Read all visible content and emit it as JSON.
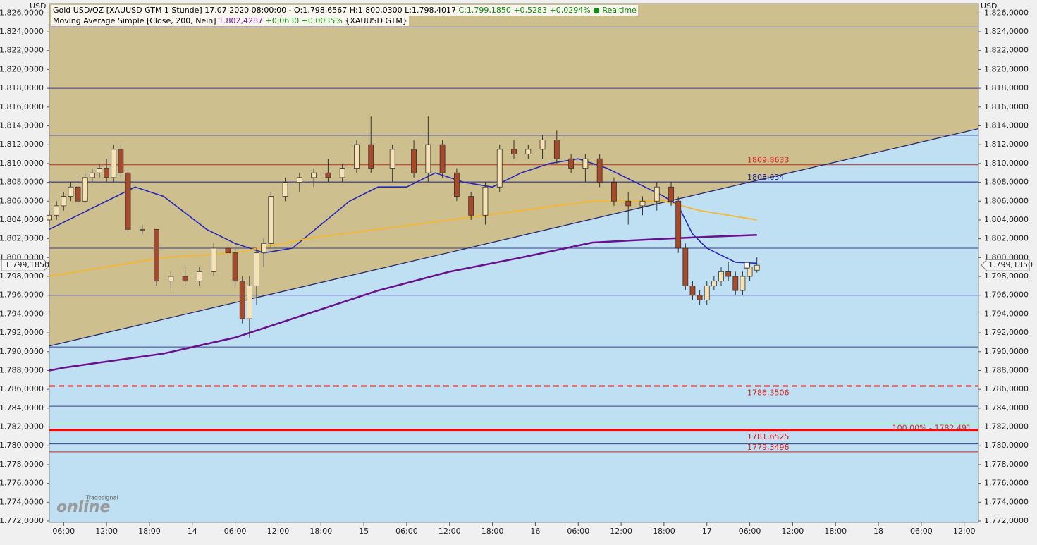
{
  "chart_data": {
    "type": "candlestick",
    "unit": "USD",
    "header": "Gold USD/OZ [XAUUSD GTM 1 Stunde] 17.07.2020 08:00:00 - O:1.798,6567 H:1.800,0300 L:1.798,4017",
    "close_text": "C:1.799,1850 +0,5283 +0,0294%",
    "realtime": "Realtime",
    "indicator": "Moving Average Simple [Close, 200, Nein]",
    "indicator_value": "1.802,4287",
    "indicator_change": "+0,0630 +0,0035%",
    "indicator_symbol": "{XAUUSD GTM}",
    "close": {
      "value": 1799.185,
      "label": "1.799,1850"
    },
    "logo_small": "Tradesignal",
    "logo": "online",
    "xlim": [
      4,
      134
    ],
    "ylim": [
      1771.85,
      1827
    ],
    "yticks": [
      {
        "value": 1772,
        "label": "1.772,0000"
      },
      {
        "value": 1774,
        "label": "1.774,0000"
      },
      {
        "value": 1776,
        "label": "1.776,0000"
      },
      {
        "value": 1778,
        "label": "1.778,0000"
      },
      {
        "value": 1780,
        "label": "1.780,0000"
      },
      {
        "value": 1782,
        "label": "1.782,0000"
      },
      {
        "value": 1784,
        "label": "1.784,0000"
      },
      {
        "value": 1786,
        "label": "1.786,0000"
      },
      {
        "value": 1788,
        "label": "1.788,0000"
      },
      {
        "value": 1790,
        "label": "1.790,0000"
      },
      {
        "value": 1792,
        "label": "1.792,0000"
      },
      {
        "value": 1794,
        "label": "1.794,0000"
      },
      {
        "value": 1796,
        "label": "1.796,0000"
      },
      {
        "value": 1798,
        "label": "1.798,0000"
      },
      {
        "value": 1800,
        "label": "1.800,0000"
      },
      {
        "value": 1802,
        "label": "1.802,0000"
      },
      {
        "value": 1804,
        "label": "1.804,0000"
      },
      {
        "value": 1806,
        "label": "1.806,0000"
      },
      {
        "value": 1808,
        "label": "1.808,0000"
      },
      {
        "value": 1810,
        "label": "1.810,0000"
      },
      {
        "value": 1812,
        "label": "1.812,0000"
      },
      {
        "value": 1814,
        "label": "1.814,0000"
      },
      {
        "value": 1816,
        "label": "1.816,0000"
      },
      {
        "value": 1818,
        "label": "1.818,0000"
      },
      {
        "value": 1820,
        "label": "1.820,0000"
      },
      {
        "value": 1822,
        "label": "1.822,0000"
      },
      {
        "value": 1824,
        "label": "1.824,0000"
      },
      {
        "value": 1826,
        "label": "1.826,0000"
      }
    ],
    "xticks": [
      {
        "value": 6,
        "label": "06:00"
      },
      {
        "value": 12,
        "label": "12:00"
      },
      {
        "value": 18,
        "label": "18:00"
      },
      {
        "value": 24,
        "label": "14"
      },
      {
        "value": 30,
        "label": "06:00"
      },
      {
        "value": 36,
        "label": "12:00"
      },
      {
        "value": 42,
        "label": "18:00"
      },
      {
        "value": 48,
        "label": "15"
      },
      {
        "value": 54,
        "label": "06:00"
      },
      {
        "value": 60,
        "label": "12:00"
      },
      {
        "value": 66,
        "label": "18:00"
      },
      {
        "value": 72,
        "label": "16"
      },
      {
        "value": 78,
        "label": "06:00"
      },
      {
        "value": 84,
        "label": "12:00"
      },
      {
        "value": 90,
        "label": "18:00"
      },
      {
        "value": 96,
        "label": "17"
      },
      {
        "value": 102,
        "label": "06:00"
      },
      {
        "value": 108,
        "label": "12:00"
      },
      {
        "value": 114,
        "label": "18:00"
      },
      {
        "value": 120,
        "label": "18"
      },
      {
        "value": 126,
        "label": "06:00"
      },
      {
        "value": 132,
        "label": "12:00"
      }
    ],
    "x": [
      4,
      5,
      6,
      7,
      8,
      9,
      10,
      11,
      12,
      13,
      14,
      15,
      17,
      19,
      21,
      23,
      25,
      27,
      29,
      30,
      31,
      32,
      33,
      34,
      35,
      37,
      39,
      41,
      43,
      45,
      47,
      49,
      52,
      55,
      57,
      59,
      61,
      63,
      65,
      67,
      69,
      71,
      73,
      75,
      77,
      79,
      81,
      83,
      85,
      87,
      89,
      91,
      92,
      93,
      94,
      95,
      96,
      97,
      98,
      99,
      100,
      101,
      102,
      103
    ],
    "open": [
      1804,
      1804.5,
      1805.5,
      1806.5,
      1807.5,
      1806,
      1808.5,
      1809,
      1809.5,
      1808.5,
      1811.5,
      1809,
      1803,
      1803,
      1797.5,
      1798,
      1797.5,
      1798.5,
      1801,
      1800.5,
      1797.5,
      1793.5,
      1797,
      1800.5,
      1801.5,
      1806.5,
      1808,
      1808.5,
      1809,
      1808.5,
      1809.5,
      1812,
      1809.5,
      1811.5,
      1809,
      1812,
      1809,
      1806.5,
      1804.5,
      1807.5,
      1811.5,
      1811,
      1811.5,
      1812.5,
      1810.5,
      1809.5,
      1810.5,
      1808,
      1806,
      1805.5,
      1806,
      1807.5,
      1806,
      1801,
      1797,
      1796,
      1795.5,
      1797,
      1797.5,
      1798.5,
      1798,
      1796.5,
      1798,
      1798.6567
    ],
    "high": [
      1805,
      1806,
      1807,
      1808,
      1808.5,
      1809,
      1809.5,
      1810,
      1810.5,
      1812,
      1812,
      1809.5,
      1803.5,
      1803,
      1798.5,
      1799,
      1799,
      1801.5,
      1801.5,
      1801.5,
      1798,
      1798,
      1801,
      1802,
      1807,
      1808.5,
      1809,
      1809.5,
      1810.5,
      1810,
      1812.5,
      1815,
      1812,
      1812.5,
      1815,
      1812.5,
      1809.5,
      1807,
      1808,
      1812,
      1812.5,
      1812,
      1813,
      1813.5,
      1811,
      1811,
      1811,
      1808.5,
      1807,
      1806.5,
      1808,
      1808,
      1806.5,
      1801.5,
      1797.5,
      1796.5,
      1797.5,
      1798,
      1799,
      1799.5,
      1798.5,
      1798.5,
      1799.5,
      1800.03
    ],
    "low": [
      1803.5,
      1804,
      1805,
      1806,
      1805.5,
      1805.8,
      1808,
      1808.5,
      1808,
      1808,
      1808.5,
      1802.5,
      1802.5,
      1797,
      1796.5,
      1797,
      1797,
      1798,
      1800,
      1797,
      1793,
      1791.5,
      1795,
      1799,
      1801,
      1806,
      1807,
      1807.5,
      1808,
      1808,
      1809,
      1809,
      1808,
      1808.5,
      1808,
      1808.5,
      1806,
      1804,
      1803.5,
      1807,
      1810.5,
      1810.5,
      1810.5,
      1810,
      1809,
      1808,
      1807.5,
      1805.5,
      1803.5,
      1804.5,
      1805,
      1805.5,
      1800.5,
      1796.5,
      1795.5,
      1795,
      1795,
      1796.5,
      1797,
      1797.5,
      1796,
      1796,
      1797.5,
      1798.4017
    ],
    "close_values": [
      1804.5,
      1805.5,
      1806.5,
      1807.5,
      1806,
      1808.5,
      1809,
      1809.5,
      1808.5,
      1811.5,
      1809,
      1803,
      1803,
      1797.5,
      1798,
      1797.5,
      1798.5,
      1801,
      1800.5,
      1797.5,
      1793.5,
      1797,
      1800.5,
      1801.5,
      1806.5,
      1808,
      1808.5,
      1809,
      1808.5,
      1809.5,
      1812,
      1809.5,
      1811.5,
      1809,
      1812,
      1809,
      1806.5,
      1804.5,
      1807.5,
      1811.5,
      1811,
      1811.5,
      1812.5,
      1810.5,
      1809.5,
      1810.5,
      1808,
      1806,
      1805.5,
      1806,
      1807.5,
      1806,
      1801,
      1797,
      1796,
      1795.5,
      1797,
      1797.5,
      1798.5,
      1798,
      1796.5,
      1798,
      1799,
      1799.185
    ],
    "lines": [
      {
        "color": "#6a0f8e",
        "width": 2.5,
        "x": [
          4,
          6,
          20,
          30,
          40,
          50,
          60,
          70,
          80,
          90,
          96,
          103
        ],
        "values": [
          1788,
          1788.3,
          1789.8,
          1791.5,
          1794,
          1796.5,
          1798.5,
          1800,
          1801.6,
          1802,
          1802.2,
          1802.4
        ]
      },
      {
        "color": "#2727b8",
        "width": 1.6,
        "x": [
          4,
          12,
          16,
          20,
          26,
          30,
          34,
          38,
          42,
          46,
          50,
          54,
          58,
          62,
          66,
          70,
          74,
          78,
          82,
          86,
          90,
          92,
          94,
          96,
          100,
          103
        ],
        "values": [
          1803,
          1806,
          1807.5,
          1806.5,
          1803,
          1801.5,
          1800.5,
          1801,
          1803.5,
          1806,
          1807.5,
          1807.5,
          1809,
          1808,
          1807.5,
          1809,
          1810,
          1810.5,
          1809.5,
          1808,
          1806.5,
          1805.5,
          1802.5,
          1801,
          1799.5,
          1799.4
        ]
      },
      {
        "color": "#f5b731",
        "width": 1.8,
        "x": [
          4,
          20,
          30,
          40,
          50,
          60,
          70,
          80,
          90,
          95,
          103
        ],
        "values": [
          1798,
          1800,
          1800.5,
          1802,
          1803,
          1804,
          1805,
          1806,
          1806,
          1805,
          1804
        ]
      }
    ],
    "trendline": {
      "color": "#2a2a6e",
      "x": [
        4,
        134
      ],
      "values": [
        1790.6,
        1813.7
      ]
    },
    "levels": [
      {
        "value": 1824.5,
        "color": "#3c3c8c"
      },
      {
        "value": 1818,
        "color": "#3c3c8c"
      },
      {
        "value": 1813,
        "color": "#3c3c8c"
      },
      {
        "value": 1809.8633,
        "color": "#d42020",
        "label": "1809,8633"
      },
      {
        "value": 1808.034,
        "color": "#1a1a9c",
        "label": "1808,034"
      },
      {
        "value": 1801,
        "color": "#3c3c8c"
      },
      {
        "value": 1796,
        "color": "#3c3c8c"
      },
      {
        "value": 1790.5,
        "color": "#3c3c8c"
      },
      {
        "value": 1786.3506,
        "color": "#d42020",
        "dash": true,
        "label": "1786,3506"
      },
      {
        "value": 1784.2,
        "color": "#3c3c8c"
      },
      {
        "value": 1782.3,
        "color": "#2a9a3a"
      },
      {
        "value": 1781.6525,
        "color": "#e01010",
        "width": 4,
        "label": "1781,6525"
      },
      {
        "value": 1780.2,
        "color": "#3c3c8c"
      },
      {
        "value": 1779.3496,
        "color": "#d42020",
        "label": "1779,3496"
      }
    ],
    "fib_label": "100,00% - 1782,491",
    "colors": {
      "up": "#f7e2b3",
      "down": "#a84a2a",
      "upper_bg": "#cdbf8e",
      "lower_bg": "#bfe0f2"
    }
  }
}
